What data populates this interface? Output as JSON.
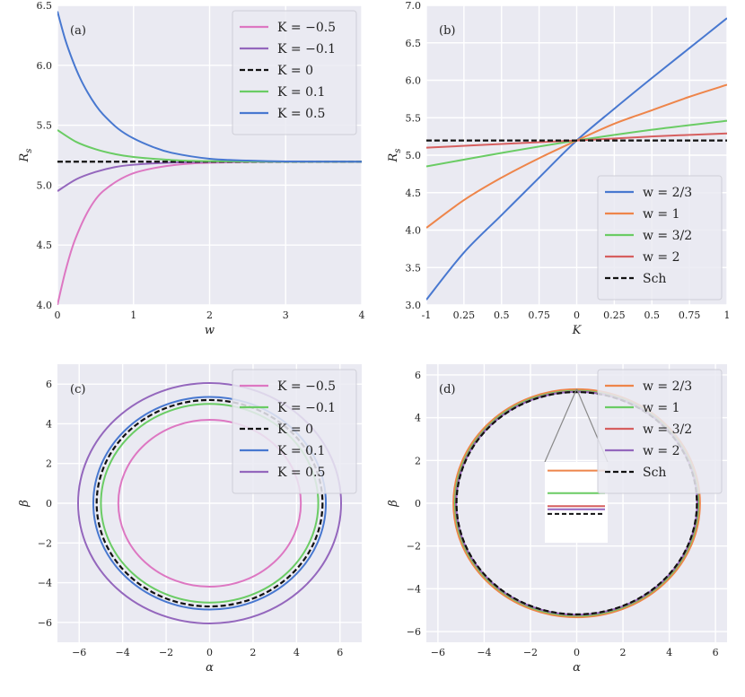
{
  "chart_data": [
    {
      "panel": "(a)",
      "type": "line",
      "xlabel": "w",
      "ylabel": "R_s",
      "xlim": [
        0,
        4
      ],
      "ylim": [
        4.0,
        6.5
      ],
      "xticks": [
        "0",
        "1",
        "2",
        "3",
        "4"
      ],
      "yticks": [
        "4.0",
        "4.5",
        "5.0",
        "5.5",
        "6.0",
        "6.5"
      ],
      "legend_position": "top-right",
      "series": [
        {
          "name": "K = −0.5",
          "color": "#dd77c2",
          "dash": false,
          "x": [
            0,
            0.1,
            0.2,
            0.3,
            0.4,
            0.5,
            0.6,
            0.8,
            1.0,
            1.25,
            1.5,
            1.75,
            2.0,
            2.5,
            3.0,
            3.5,
            4.0
          ],
          "y": [
            4.0,
            4.27,
            4.49,
            4.65,
            4.78,
            4.88,
            4.95,
            5.04,
            5.1,
            5.14,
            5.165,
            5.18,
            5.187,
            5.193,
            5.196,
            5.196,
            5.196
          ]
        },
        {
          "name": "K = −0.1",
          "color": "#9467bd",
          "dash": false,
          "x": [
            0,
            0.25,
            0.5,
            0.75,
            1.0,
            1.5,
            2.0,
            3.0,
            4.0
          ],
          "y": [
            4.95,
            5.05,
            5.11,
            5.15,
            5.17,
            5.188,
            5.194,
            5.196,
            5.196
          ]
        },
        {
          "name": "K = 0",
          "color": "#111111",
          "dash": true,
          "x": [
            0,
            4
          ],
          "y": [
            5.196,
            5.196
          ]
        },
        {
          "name": "K = 0.1",
          "color": "#6acc64",
          "dash": false,
          "x": [
            0,
            0.25,
            0.5,
            0.75,
            1.0,
            1.5,
            2.0,
            3.0,
            4.0
          ],
          "y": [
            5.46,
            5.36,
            5.3,
            5.26,
            5.235,
            5.21,
            5.2,
            5.196,
            5.196
          ]
        },
        {
          "name": "K = 0.5",
          "color": "#4878d0",
          "dash": false,
          "x": [
            0,
            0.1,
            0.2,
            0.3,
            0.4,
            0.5,
            0.6,
            0.8,
            1.0,
            1.25,
            1.5,
            2.0,
            2.5,
            3.0,
            4.0
          ],
          "y": [
            6.45,
            6.22,
            6.04,
            5.89,
            5.77,
            5.67,
            5.59,
            5.47,
            5.39,
            5.32,
            5.27,
            5.22,
            5.205,
            5.198,
            5.196
          ]
        }
      ]
    },
    {
      "panel": "(b)",
      "type": "line",
      "xlabel": "K",
      "ylabel": "R_s",
      "xlim": [
        -1,
        1
      ],
      "ylim": [
        3.0,
        7.0
      ],
      "xticks": [
        "-1",
        "0.25",
        "0.5",
        "0.75",
        "0",
        "0.25",
        "0.5",
        "0.75",
        "1"
      ],
      "yticks": [
        "3.0",
        "3.5",
        "4.0",
        "4.5",
        "5.0",
        "5.5",
        "6.0",
        "6.5",
        "7.0"
      ],
      "legend_position": "bottom-right",
      "series": [
        {
          "name": "w = 2/3",
          "color": "#4878d0",
          "dash": false,
          "x": [
            -1,
            -0.75,
            -0.5,
            -0.25,
            0,
            0.25,
            0.5,
            0.75,
            1
          ],
          "y": [
            3.07,
            3.7,
            4.2,
            4.7,
            5.196,
            5.62,
            6.03,
            6.43,
            6.83
          ]
        },
        {
          "name": "w = 1",
          "color": "#ee854a",
          "dash": false,
          "x": [
            -1,
            -0.75,
            -0.5,
            -0.25,
            0,
            0.25,
            0.5,
            0.75,
            1
          ],
          "y": [
            4.03,
            4.4,
            4.7,
            4.96,
            5.196,
            5.42,
            5.6,
            5.78,
            5.94
          ]
        },
        {
          "name": "w = 3/2",
          "color": "#6acc64",
          "dash": false,
          "x": [
            -1,
            -0.5,
            0,
            0.5,
            1
          ],
          "y": [
            4.85,
            5.03,
            5.196,
            5.34,
            5.46
          ]
        },
        {
          "name": "w = 2",
          "color": "#d65f5f",
          "dash": false,
          "x": [
            -1,
            -0.5,
            0,
            0.5,
            1
          ],
          "y": [
            5.1,
            5.15,
            5.196,
            5.25,
            5.29
          ]
        },
        {
          "name": "Sch",
          "color": "#111111",
          "dash": true,
          "x": [
            -1,
            1
          ],
          "y": [
            5.196,
            5.196
          ]
        }
      ]
    },
    {
      "panel": "(c)",
      "type": "line",
      "xlabel": "α",
      "ylabel": "β",
      "xlim": [
        -7,
        7
      ],
      "ylim": [
        -7,
        7
      ],
      "xticks": [
        "−6",
        "−4",
        "−2",
        "0",
        "2",
        "4",
        "6"
      ],
      "yticks": [
        "−6",
        "−4",
        "−2",
        "0",
        "2",
        "4",
        "6"
      ],
      "legend_position": "top-right",
      "series": [
        {
          "name": "K = −0.5",
          "color": "#dd77c2",
          "dash": false,
          "radius": 4.2
        },
        {
          "name": "K = −0.1",
          "color": "#6acc64",
          "dash": false,
          "radius": 5.0
        },
        {
          "name": "K = 0",
          "color": "#111111",
          "dash": true,
          "radius": 5.196
        },
        {
          "name": "K = 0.1",
          "color": "#4878d0",
          "dash": false,
          "radius": 5.35
        },
        {
          "name": "K = 0.5",
          "color": "#9467bd",
          "dash": false,
          "radius": 6.05
        }
      ]
    },
    {
      "panel": "(d)",
      "type": "line",
      "xlabel": "α",
      "ylabel": "β",
      "xlim": [
        -6.5,
        6.5
      ],
      "ylim": [
        -6.5,
        6.5
      ],
      "xticks": [
        "−6",
        "−4",
        "−2",
        "0",
        "2",
        "4",
        "6"
      ],
      "yticks": [
        "−6",
        "−4",
        "−2",
        "0",
        "2",
        "4",
        "6"
      ],
      "legend_position": "top-right",
      "series": [
        {
          "name": "w = 2/3",
          "color": "#ee854a",
          "dash": false,
          "radius": 5.33
        },
        {
          "name": "w = 1",
          "color": "#6acc64",
          "dash": false,
          "radius": 5.26
        },
        {
          "name": "w = 3/2",
          "color": "#d65f5f",
          "dash": false,
          "radius": 5.22
        },
        {
          "name": "w = 2",
          "color": "#9467bd",
          "dash": false,
          "radius": 5.21
        },
        {
          "name": "Sch",
          "color": "#111111",
          "dash": true,
          "radius": 5.196
        }
      ]
    }
  ]
}
